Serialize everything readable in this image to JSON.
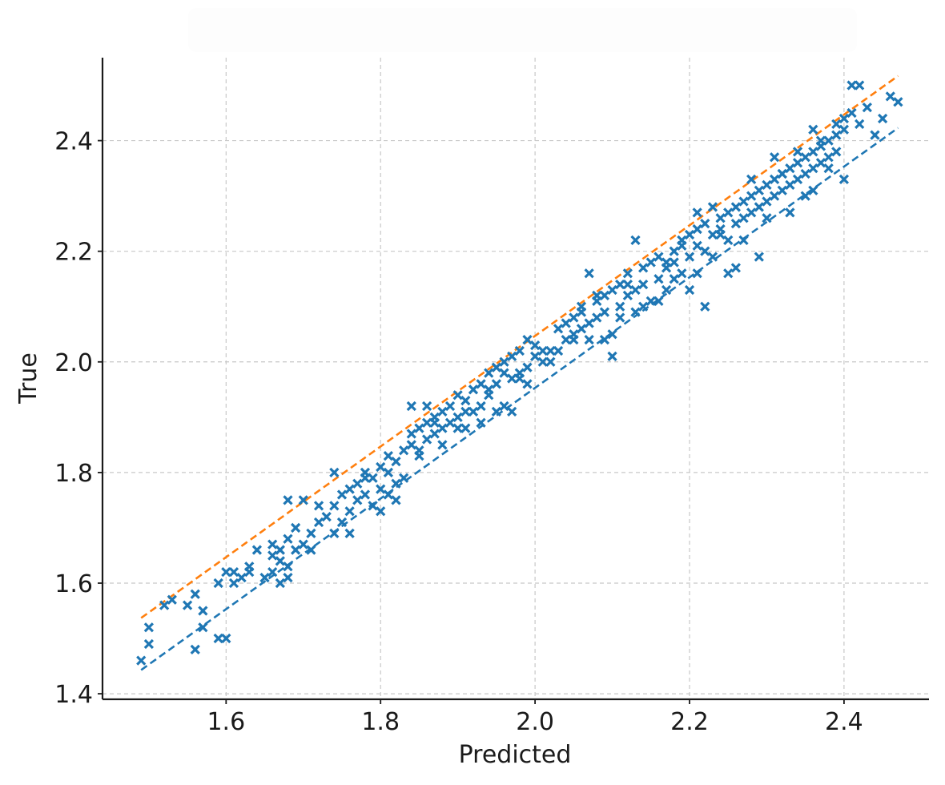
{
  "chart_data": {
    "type": "scatter",
    "title": "",
    "xlabel": "Predicted",
    "ylabel": "True",
    "xlim": [
      1.44,
      2.51
    ],
    "ylim": [
      1.39,
      2.55
    ],
    "xticks": [
      "1.6",
      "1.8",
      "2.0",
      "2.2",
      "2.4"
    ],
    "yticks": [
      "1.4",
      "1.6",
      "1.8",
      "2.0",
      "2.2",
      "2.4"
    ],
    "grid": true,
    "colors": {
      "points": "#1f77b4",
      "lower_line": "#1f77b4",
      "upper_line": "#ff7f0e",
      "grid": "#c8c8c8",
      "axis": "#1a1a1a"
    },
    "lines": [
      {
        "style": "dashed",
        "color": "#ff7f0e",
        "x": [
          1.49,
          2.47
        ],
        "y": [
          1.537,
          2.517
        ]
      },
      {
        "style": "dashed",
        "color": "#1f77b4",
        "x": [
          1.49,
          2.47
        ],
        "y": [
          1.443,
          2.423
        ]
      }
    ],
    "series": [
      {
        "marker": "x",
        "points": [
          [
            1.49,
            1.46
          ],
          [
            1.5,
            1.49
          ],
          [
            1.5,
            1.52
          ],
          [
            1.52,
            1.56
          ],
          [
            1.53,
            1.57
          ],
          [
            1.55,
            1.56
          ],
          [
            1.56,
            1.58
          ],
          [
            1.56,
            1.48
          ],
          [
            1.57,
            1.52
          ],
          [
            1.57,
            1.55
          ],
          [
            1.59,
            1.5
          ],
          [
            1.6,
            1.5
          ],
          [
            1.59,
            1.6
          ],
          [
            1.6,
            1.62
          ],
          [
            1.61,
            1.62
          ],
          [
            1.62,
            1.61
          ],
          [
            1.63,
            1.62
          ],
          [
            1.64,
            1.66
          ],
          [
            1.66,
            1.67
          ],
          [
            1.65,
            1.61
          ],
          [
            1.66,
            1.62
          ],
          [
            1.67,
            1.6
          ],
          [
            1.67,
            1.64
          ],
          [
            1.68,
            1.68
          ],
          [
            1.68,
            1.63
          ],
          [
            1.69,
            1.66
          ],
          [
            1.68,
            1.61
          ],
          [
            1.69,
            1.7
          ],
          [
            1.7,
            1.67
          ],
          [
            1.71,
            1.66
          ],
          [
            1.71,
            1.69
          ],
          [
            1.72,
            1.71
          ],
          [
            1.73,
            1.72
          ],
          [
            1.74,
            1.74
          ],
          [
            1.74,
            1.69
          ],
          [
            1.75,
            1.71
          ],
          [
            1.75,
            1.76
          ],
          [
            1.76,
            1.73
          ],
          [
            1.76,
            1.77
          ],
          [
            1.77,
            1.75
          ],
          [
            1.77,
            1.78
          ],
          [
            1.78,
            1.76
          ],
          [
            1.78,
            1.8
          ],
          [
            1.79,
            1.74
          ],
          [
            1.79,
            1.79
          ],
          [
            1.8,
            1.81
          ],
          [
            1.8,
            1.77
          ],
          [
            1.81,
            1.8
          ],
          [
            1.81,
            1.83
          ],
          [
            1.82,
            1.78
          ],
          [
            1.82,
            1.82
          ],
          [
            1.83,
            1.84
          ],
          [
            1.83,
            1.79
          ],
          [
            1.84,
            1.85
          ],
          [
            1.84,
            1.87
          ],
          [
            1.85,
            1.84
          ],
          [
            1.85,
            1.88
          ],
          [
            1.86,
            1.86
          ],
          [
            1.86,
            1.89
          ],
          [
            1.87,
            1.9
          ],
          [
            1.87,
            1.87
          ],
          [
            1.88,
            1.91
          ],
          [
            1.88,
            1.85
          ],
          [
            1.89,
            1.89
          ],
          [
            1.89,
            1.92
          ],
          [
            1.9,
            1.9
          ],
          [
            1.9,
            1.94
          ],
          [
            1.91,
            1.88
          ],
          [
            1.91,
            1.93
          ],
          [
            1.92,
            1.91
          ],
          [
            1.92,
            1.95
          ],
          [
            1.93,
            1.96
          ],
          [
            1.93,
            1.92
          ],
          [
            1.94,
            1.98
          ],
          [
            1.94,
            1.95
          ],
          [
            1.95,
            1.99
          ],
          [
            1.95,
            1.96
          ],
          [
            1.96,
            2.0
          ],
          [
            1.96,
            1.92
          ],
          [
            1.97,
            1.97
          ],
          [
            1.97,
            2.01
          ],
          [
            1.98,
            1.98
          ],
          [
            1.98,
            2.02
          ],
          [
            1.99,
            1.99
          ],
          [
            1.99,
            1.96
          ],
          [
            2.0,
            2.01
          ],
          [
            2.0,
            2.03
          ],
          [
            2.01,
            2.02
          ],
          [
            2.02,
            2.0
          ],
          [
            2.03,
            2.06
          ],
          [
            2.04,
            2.04
          ],
          [
            2.04,
            2.07
          ],
          [
            2.05,
            2.05
          ],
          [
            2.05,
            2.08
          ],
          [
            2.06,
            2.06
          ],
          [
            2.06,
            2.1
          ],
          [
            2.07,
            2.07
          ],
          [
            2.07,
            2.04
          ],
          [
            2.08,
            2.11
          ],
          [
            2.08,
            2.08
          ],
          [
            2.09,
            2.12
          ],
          [
            2.09,
            2.09
          ],
          [
            2.1,
            2.05
          ],
          [
            2.1,
            2.13
          ],
          [
            2.11,
            2.1
          ],
          [
            2.11,
            2.14
          ],
          [
            2.12,
            2.12
          ],
          [
            2.12,
            2.16
          ],
          [
            2.13,
            2.13
          ],
          [
            2.13,
            2.09
          ],
          [
            2.14,
            2.17
          ],
          [
            2.14,
            2.14
          ],
          [
            2.15,
            2.18
          ],
          [
            2.15,
            2.11
          ],
          [
            2.16,
            2.15
          ],
          [
            2.16,
            2.19
          ],
          [
            2.17,
            2.17
          ],
          [
            2.17,
            2.13
          ],
          [
            2.18,
            2.2
          ],
          [
            2.18,
            2.18
          ],
          [
            2.19,
            2.16
          ],
          [
            2.19,
            2.21
          ],
          [
            2.2,
            2.19
          ],
          [
            2.2,
            2.23
          ],
          [
            2.21,
            2.21
          ],
          [
            2.21,
            2.24
          ],
          [
            2.22,
            2.2
          ],
          [
            2.22,
            2.25
          ],
          [
            2.23,
            2.23
          ],
          [
            2.23,
            2.19
          ],
          [
            2.24,
            2.26
          ],
          [
            2.24,
            2.24
          ],
          [
            2.25,
            2.27
          ],
          [
            2.25,
            2.22
          ],
          [
            2.26,
            2.28
          ],
          [
            2.26,
            2.25
          ],
          [
            2.27,
            2.29
          ],
          [
            2.27,
            2.26
          ],
          [
            2.28,
            2.3
          ],
          [
            2.28,
            2.27
          ],
          [
            2.29,
            2.31
          ],
          [
            2.29,
            2.28
          ],
          [
            2.3,
            2.32
          ],
          [
            2.3,
            2.29
          ],
          [
            2.31,
            2.33
          ],
          [
            2.31,
            2.3
          ],
          [
            2.32,
            2.34
          ],
          [
            2.32,
            2.31
          ],
          [
            2.33,
            2.35
          ],
          [
            2.33,
            2.32
          ],
          [
            2.34,
            2.36
          ],
          [
            2.34,
            2.33
          ],
          [
            2.35,
            2.37
          ],
          [
            2.35,
            2.34
          ],
          [
            2.36,
            2.38
          ],
          [
            2.36,
            2.35
          ],
          [
            2.37,
            2.39
          ],
          [
            2.37,
            2.36
          ],
          [
            2.38,
            2.4
          ],
          [
            2.38,
            2.37
          ],
          [
            2.39,
            2.41
          ],
          [
            2.39,
            2.38
          ],
          [
            2.4,
            2.42
          ],
          [
            2.4,
            2.44
          ],
          [
            2.41,
            2.45
          ],
          [
            2.41,
            2.5
          ],
          [
            2.42,
            2.5
          ],
          [
            2.42,
            2.43
          ],
          [
            2.43,
            2.46
          ],
          [
            2.44,
            2.41
          ],
          [
            2.45,
            2.44
          ],
          [
            2.46,
            2.48
          ],
          [
            2.47,
            2.47
          ],
          [
            2.4,
            2.33
          ],
          [
            2.38,
            2.35
          ],
          [
            2.35,
            2.3
          ],
          [
            2.33,
            2.27
          ],
          [
            2.3,
            2.26
          ],
          [
            2.29,
            2.19
          ],
          [
            2.26,
            2.17
          ],
          [
            2.25,
            2.16
          ],
          [
            2.22,
            2.1
          ],
          [
            2.2,
            2.13
          ],
          [
            2.18,
            2.15
          ],
          [
            2.16,
            2.11
          ],
          [
            2.13,
            2.22
          ],
          [
            2.12,
            2.14
          ],
          [
            2.1,
            2.01
          ],
          [
            2.09,
            2.04
          ],
          [
            2.07,
            2.16
          ],
          [
            2.05,
            2.04
          ],
          [
            2.02,
            2.02
          ],
          [
            1.99,
            2.04
          ],
          [
            1.97,
            1.91
          ],
          [
            1.95,
            1.91
          ],
          [
            1.93,
            1.89
          ],
          [
            1.9,
            1.88
          ],
          [
            1.88,
            1.88
          ],
          [
            1.86,
            1.92
          ],
          [
            1.84,
            1.92
          ],
          [
            1.82,
            1.75
          ],
          [
            1.8,
            1.73
          ],
          [
            1.78,
            1.79
          ],
          [
            1.76,
            1.69
          ],
          [
            1.74,
            1.8
          ],
          [
            1.72,
            1.74
          ],
          [
            1.7,
            1.75
          ],
          [
            1.68,
            1.75
          ],
          [
            1.67,
            1.66
          ],
          [
            1.66,
            1.65
          ],
          [
            1.63,
            1.63
          ],
          [
            1.61,
            1.6
          ],
          [
            1.81,
            1.76
          ],
          [
            1.85,
            1.83
          ],
          [
            1.87,
            1.89
          ],
          [
            1.91,
            1.91
          ],
          [
            1.94,
            1.94
          ],
          [
            1.96,
            1.98
          ],
          [
            1.98,
            1.97
          ],
          [
            2.01,
            2.0
          ],
          [
            2.03,
            2.02
          ],
          [
            2.06,
            2.09
          ],
          [
            2.08,
            2.12
          ],
          [
            2.11,
            2.08
          ],
          [
            2.14,
            2.1
          ],
          [
            2.17,
            2.18
          ],
          [
            2.19,
            2.22
          ],
          [
            2.21,
            2.16
          ],
          [
            2.24,
            2.23
          ],
          [
            2.27,
            2.22
          ],
          [
            2.28,
            2.33
          ],
          [
            2.32,
            2.34
          ],
          [
            2.34,
            2.38
          ],
          [
            2.36,
            2.42
          ],
          [
            2.37,
            2.4
          ],
          [
            2.39,
            2.43
          ],
          [
            2.36,
            2.31
          ],
          [
            2.31,
            2.37
          ],
          [
            2.23,
            2.28
          ],
          [
            2.21,
            2.27
          ]
        ]
      }
    ]
  }
}
